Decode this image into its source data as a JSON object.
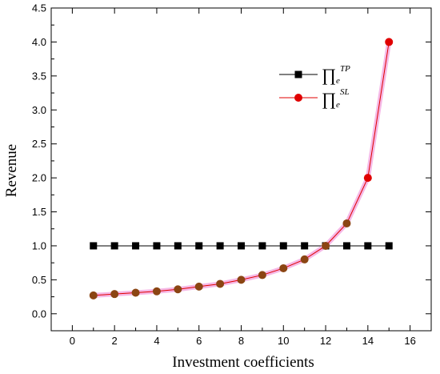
{
  "chart_data": {
    "type": "line",
    "xlabel": "Investment coefficients",
    "ylabel": "Revenue",
    "xlim": [
      -1,
      17
    ],
    "ylim": [
      -0.25,
      4.5
    ],
    "x_ticks": [
      0,
      2,
      4,
      6,
      8,
      10,
      12,
      14,
      16
    ],
    "y_ticks": [
      0.0,
      0.5,
      1.0,
      1.5,
      2.0,
      2.5,
      3.0,
      3.5,
      4.0,
      4.5
    ],
    "grid": false,
    "legend_position": "top-right",
    "x": [
      1,
      2,
      3,
      4,
      5,
      6,
      7,
      8,
      9,
      10,
      11,
      12,
      13,
      14,
      15
    ],
    "series": [
      {
        "legend_symbol": "∏",
        "legend_subscript": "e",
        "legend_superscript": "TP",
        "color": "#000000",
        "marker": "square",
        "values": [
          1.0,
          1.0,
          1.0,
          1.0,
          1.0,
          1.0,
          1.0,
          1.0,
          1.0,
          1.0,
          1.0,
          1.0,
          1.0,
          1.0,
          1.0
        ]
      },
      {
        "legend_symbol": "∏",
        "legend_subscript": "e",
        "legend_superscript": "SL",
        "color": "#e00000",
        "marker": "circle",
        "values": [
          0.27,
          0.29,
          0.31,
          0.33,
          0.36,
          0.4,
          0.44,
          0.5,
          0.57,
          0.67,
          0.8,
          1.0,
          1.33,
          2.0,
          4.0
        ]
      }
    ]
  }
}
